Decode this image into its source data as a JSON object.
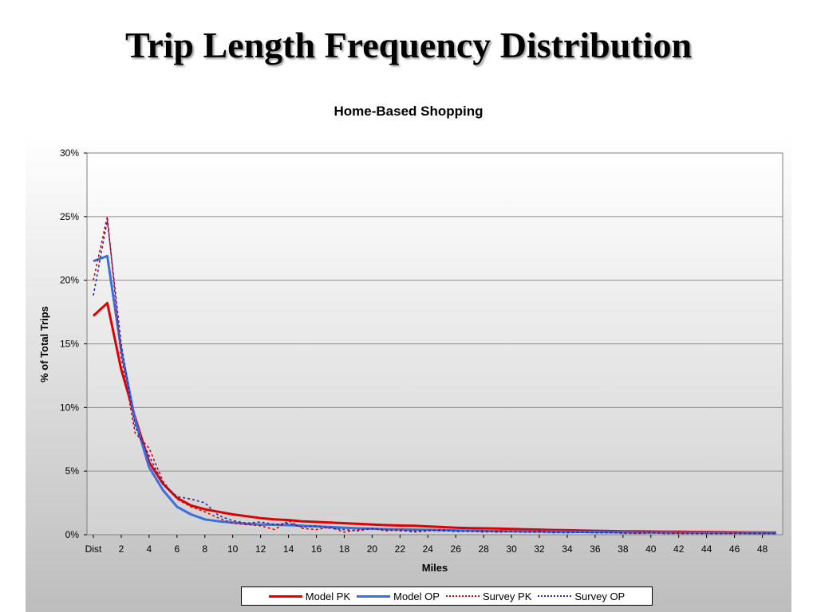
{
  "page": {
    "title": "Trip Length Frequency Distribution"
  },
  "chart_data": {
    "type": "line",
    "title": "Home-Based Shopping",
    "xlabel": "Miles",
    "ylabel": "% of Total Trips",
    "ylim": [
      0,
      30
    ],
    "y_ticks": [
      "0%",
      "5%",
      "10%",
      "15%",
      "20%",
      "25%",
      "30%"
    ],
    "x_tick_labels": [
      "Dist",
      "2",
      "4",
      "6",
      "8",
      "10",
      "12",
      "14",
      "16",
      "18",
      "20",
      "22",
      "24",
      "26",
      "28",
      "30",
      "32",
      "34",
      "36",
      "38",
      "40",
      "42",
      "44",
      "46",
      "48"
    ],
    "x": [
      0,
      1,
      2,
      3,
      4,
      5,
      6,
      7,
      8,
      9,
      10,
      11,
      12,
      13,
      14,
      15,
      16,
      17,
      18,
      19,
      20,
      21,
      22,
      23,
      24,
      25,
      26,
      27,
      28,
      29,
      30,
      31,
      32,
      33,
      34,
      35,
      36,
      37,
      38,
      39,
      40,
      41,
      42,
      43,
      44,
      45,
      46,
      47,
      48,
      49
    ],
    "grid": "horizontal",
    "legend_position": "bottom",
    "series": [
      {
        "name": "Model PK",
        "color": "#e00000",
        "style": "solid",
        "values": [
          17.2,
          18.2,
          13.0,
          9.2,
          5.7,
          4.0,
          2.9,
          2.3,
          2.0,
          1.8,
          1.6,
          1.45,
          1.3,
          1.2,
          1.15,
          1.05,
          1.0,
          0.95,
          0.9,
          0.85,
          0.8,
          0.75,
          0.72,
          0.7,
          0.65,
          0.6,
          0.55,
          0.52,
          0.5,
          0.48,
          0.45,
          0.42,
          0.4,
          0.37,
          0.35,
          0.33,
          0.31,
          0.29,
          0.27,
          0.26,
          0.25,
          0.24,
          0.23,
          0.22,
          0.21,
          0.2,
          0.19,
          0.18,
          0.17,
          0.16
        ]
      },
      {
        "name": "Model OP",
        "color": "#3a6fe0",
        "style": "solid",
        "values": [
          21.5,
          21.9,
          14.5,
          9.0,
          5.3,
          3.5,
          2.2,
          1.6,
          1.2,
          1.05,
          0.95,
          0.85,
          0.8,
          0.78,
          0.75,
          0.7,
          0.65,
          0.6,
          0.55,
          0.5,
          0.47,
          0.44,
          0.42,
          0.4,
          0.38,
          0.36,
          0.34,
          0.32,
          0.3,
          0.28,
          0.27,
          0.26,
          0.25,
          0.24,
          0.23,
          0.22,
          0.21,
          0.2,
          0.19,
          0.18,
          0.17,
          0.17,
          0.16,
          0.16,
          0.15,
          0.15,
          0.14,
          0.14,
          0.13,
          0.13
        ]
      },
      {
        "name": "Survey PK",
        "color": "#e00000",
        "style": "dotted",
        "values": [
          20.0,
          25.0,
          14.0,
          8.0,
          6.8,
          4.2,
          2.8,
          2.2,
          1.8,
          1.3,
          0.9,
          0.8,
          0.7,
          0.4,
          1.1,
          0.5,
          0.4,
          0.6,
          0.2,
          0.4,
          0.5,
          0.3,
          0.4,
          0.2,
          0.3,
          0.4,
          0.25,
          0.3,
          0.2,
          0.3,
          0.25,
          0.2,
          0.3,
          0.15,
          0.2,
          0.2,
          0.15,
          0.2,
          0.1,
          0.15,
          0.2,
          0.1,
          0.15,
          0.1,
          0.1,
          0.1,
          0.15,
          0.1,
          0.1,
          0.1
        ]
      },
      {
        "name": "Survey OP",
        "color": "#2a2ab0",
        "style": "dotted",
        "values": [
          18.8,
          24.7,
          15.0,
          8.5,
          6.2,
          4.0,
          3.0,
          2.8,
          2.5,
          1.5,
          1.1,
          0.9,
          1.0,
          0.8,
          0.9,
          0.6,
          0.7,
          0.5,
          0.4,
          0.3,
          0.5,
          0.4,
          0.3,
          0.3,
          0.35,
          0.3,
          0.3,
          0.25,
          0.3,
          0.2,
          0.25,
          0.2,
          0.2,
          0.2,
          0.15,
          0.2,
          0.15,
          0.15,
          0.15,
          0.1,
          0.15,
          0.1,
          0.1,
          0.1,
          0.1,
          0.1,
          0.1,
          0.1,
          0.1,
          0.1
        ]
      }
    ]
  }
}
